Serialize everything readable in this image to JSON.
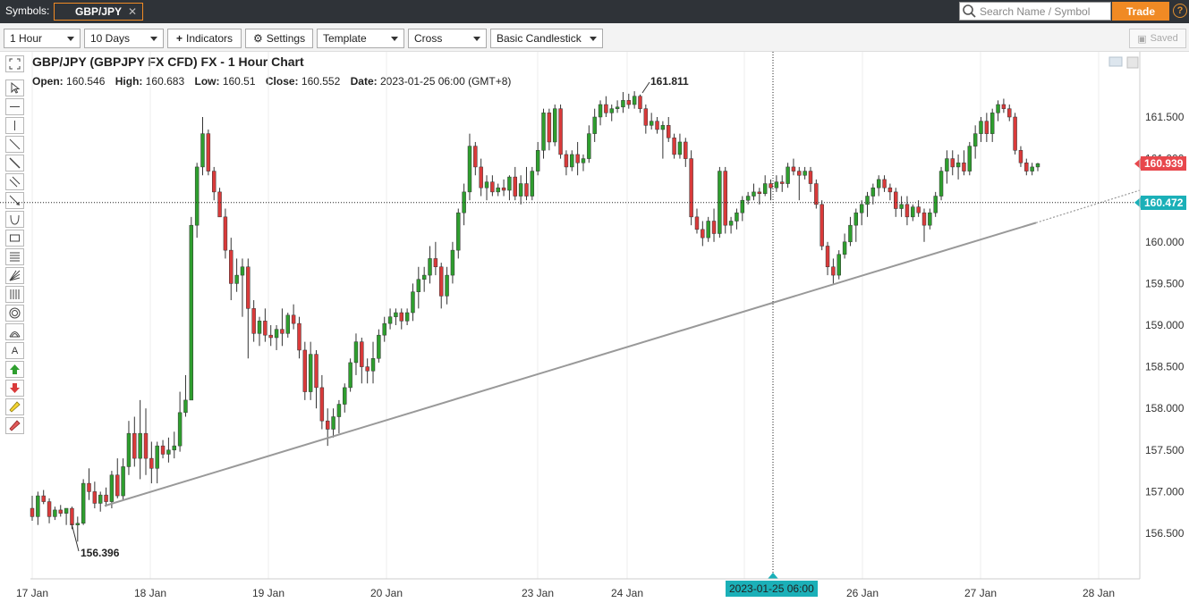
{
  "topbar": {
    "symbols_label": "Symbols:",
    "symbol": "GBP/JPY",
    "close_glyph": "✕",
    "search_placeholder": "Search Name / Symbol",
    "trade_label": "Trade",
    "help_glyph": "?"
  },
  "toolbar": {
    "interval": "1 Hour",
    "range": "10 Days",
    "indicators": "Indicators",
    "settings": "Settings",
    "template": "Template",
    "cursor": "Cross",
    "style": "Basic Candlestick",
    "saved": "Saved"
  },
  "tools": [
    "expand-icon",
    "pointer-icon",
    "horizontal-line-icon",
    "vertical-line-icon",
    "trend-line-icon",
    "ray-icon",
    "parallel-channel-icon",
    "arrow-line-icon",
    "arc-icon",
    "rectangle-icon",
    "fib-retracement-icon",
    "fib-fan-icon",
    "fib-timezone-icon",
    "circles-icon",
    "fib-arc-icon",
    "text-icon",
    "up-arrow-icon",
    "down-arrow-icon",
    "highlighter-icon",
    "eraser-icon"
  ],
  "header": {
    "title": "GBP/JPY (GBPJPY FX CFD) FX - 1 Hour Chart",
    "open_label": "Open:",
    "open": "160.546",
    "high_label": "High:",
    "high": "160.683",
    "low_label": "Low:",
    "low": "160.51",
    "close_label": "Close:",
    "close": "160.552",
    "date_label": "Date:",
    "date": "2023-01-25 06:00 (GMT+8)"
  },
  "colors": {
    "up": "#2e9e2e",
    "down": "#d93a3a",
    "last_price_badge": "#e8474c",
    "crosshair_badge": "#1bb0b8",
    "trend_line": "#999999"
  },
  "chart_data": {
    "type": "candlestick",
    "title": "GBP/JPY (GBPJPY FX CFD) FX - 1 Hour Chart",
    "ylim": [
      156.1,
      162.0
    ],
    "y_ticks": [
      "161.500",
      "161.000",
      "160.500",
      "160.000",
      "159.500",
      "159.000",
      "158.500",
      "158.000",
      "157.500",
      "157.000",
      "156.500"
    ],
    "x_ticks": [
      "17 Jan",
      "18 Jan",
      "19 Jan",
      "20 Jan",
      "23 Jan",
      "24 Jan",
      "26 Jan",
      "27 Jan",
      "28 Jan"
    ],
    "last_price": "160.939",
    "crosshair_price": "160.472",
    "crosshair_time": "2023-01-25 06:00",
    "high_marker": "161.811",
    "low_marker": "156.396",
    "trend_line": {
      "start": 156.83,
      "end": 160.23,
      "extension_end": 160.62
    },
    "candles": [
      [
        156.8,
        156.95,
        156.65,
        156.7
      ],
      [
        156.7,
        157.0,
        156.6,
        156.95
      ],
      [
        156.95,
        157.02,
        156.85,
        156.88
      ],
      [
        156.88,
        156.92,
        156.62,
        156.7
      ],
      [
        156.7,
        156.82,
        156.66,
        156.78
      ],
      [
        156.78,
        156.84,
        156.7,
        156.74
      ],
      [
        156.74,
        156.8,
        156.6,
        156.8
      ],
      [
        156.8,
        156.82,
        156.55,
        156.6
      ],
      [
        156.6,
        156.7,
        156.4,
        156.62
      ],
      [
        156.62,
        157.15,
        156.6,
        157.1
      ],
      [
        157.1,
        157.28,
        156.9,
        157.0
      ],
      [
        157.0,
        157.12,
        156.8,
        156.86
      ],
      [
        156.86,
        157.0,
        156.76,
        156.96
      ],
      [
        156.96,
        157.05,
        156.82,
        156.88
      ],
      [
        156.88,
        157.25,
        156.8,
        157.2
      ],
      [
        157.2,
        157.4,
        156.92,
        156.95
      ],
      [
        156.95,
        157.4,
        156.9,
        157.3
      ],
      [
        157.3,
        157.85,
        157.2,
        157.7
      ],
      [
        157.7,
        157.9,
        157.3,
        157.4
      ],
      [
        157.4,
        158.1,
        157.15,
        157.7
      ],
      [
        157.7,
        158.0,
        157.2,
        157.4
      ],
      [
        157.4,
        157.6,
        157.1,
        157.28
      ],
      [
        157.28,
        157.6,
        157.1,
        157.55
      ],
      [
        157.55,
        157.62,
        157.4,
        157.45
      ],
      [
        157.45,
        157.65,
        157.35,
        157.5
      ],
      [
        157.5,
        157.72,
        157.4,
        157.55
      ],
      [
        157.55,
        158.2,
        157.48,
        157.95
      ],
      [
        157.95,
        158.4,
        157.9,
        158.1
      ],
      [
        158.1,
        160.3,
        158.1,
        160.2
      ],
      [
        160.2,
        160.95,
        160.05,
        160.9
      ],
      [
        160.9,
        161.5,
        160.8,
        161.3
      ],
      [
        161.3,
        161.35,
        160.8,
        160.85
      ],
      [
        160.85,
        160.9,
        160.5,
        160.6
      ],
      [
        160.6,
        160.65,
        160.3,
        160.3
      ],
      [
        160.3,
        160.4,
        159.8,
        159.9
      ],
      [
        159.9,
        160.05,
        159.3,
        159.5
      ],
      [
        159.5,
        159.8,
        159.4,
        159.6
      ],
      [
        159.6,
        159.8,
        159.1,
        159.7
      ],
      [
        159.7,
        159.8,
        158.6,
        159.2
      ],
      [
        159.2,
        159.3,
        158.8,
        158.9
      ],
      [
        158.9,
        159.1,
        158.75,
        159.05
      ],
      [
        159.05,
        159.2,
        158.8,
        158.88
      ],
      [
        158.88,
        159.0,
        158.75,
        158.85
      ],
      [
        158.85,
        159.0,
        158.7,
        158.95
      ],
      [
        158.95,
        159.2,
        158.75,
        158.9
      ],
      [
        158.9,
        159.15,
        158.85,
        159.12
      ],
      [
        159.12,
        159.25,
        158.95,
        159.02
      ],
      [
        159.02,
        159.1,
        158.6,
        158.7
      ],
      [
        158.7,
        158.8,
        158.1,
        158.2
      ],
      [
        158.2,
        158.8,
        158.1,
        158.65
      ],
      [
        158.65,
        158.7,
        158.0,
        158.25
      ],
      [
        158.25,
        158.4,
        157.75,
        157.85
      ],
      [
        157.85,
        158.0,
        157.55,
        157.75
      ],
      [
        157.75,
        158.0,
        157.65,
        157.9
      ],
      [
        157.9,
        158.1,
        157.7,
        158.05
      ],
      [
        158.05,
        158.3,
        157.95,
        158.25
      ],
      [
        158.25,
        158.6,
        158.2,
        158.55
      ],
      [
        158.55,
        158.9,
        158.4,
        158.8
      ],
      [
        158.8,
        158.85,
        158.3,
        158.5
      ],
      [
        158.5,
        158.6,
        158.3,
        158.45
      ],
      [
        158.45,
        158.8,
        158.3,
        158.6
      ],
      [
        158.6,
        158.95,
        158.55,
        158.88
      ],
      [
        158.88,
        159.1,
        158.8,
        159.02
      ],
      [
        159.02,
        159.2,
        158.95,
        159.1
      ],
      [
        159.1,
        159.2,
        159.0,
        159.15
      ],
      [
        159.15,
        159.2,
        158.95,
        159.05
      ],
      [
        159.05,
        159.2,
        159.0,
        159.15
      ],
      [
        159.15,
        159.5,
        159.05,
        159.4
      ],
      [
        159.4,
        159.7,
        159.2,
        159.55
      ],
      [
        159.55,
        159.7,
        159.4,
        159.6
      ],
      [
        159.6,
        159.95,
        159.5,
        159.8
      ],
      [
        159.8,
        160.0,
        159.6,
        159.7
      ],
      [
        159.7,
        159.75,
        159.2,
        159.35
      ],
      [
        159.35,
        159.7,
        159.25,
        159.6
      ],
      [
        159.6,
        160.0,
        159.5,
        159.9
      ],
      [
        159.9,
        160.4,
        159.8,
        160.35
      ],
      [
        160.35,
        160.7,
        160.2,
        160.6
      ],
      [
        160.6,
        161.3,
        160.5,
        161.15
      ],
      [
        161.15,
        161.2,
        160.8,
        160.9
      ],
      [
        160.9,
        161.0,
        160.55,
        160.65
      ],
      [
        160.65,
        160.8,
        160.5,
        160.72
      ],
      [
        160.72,
        160.8,
        160.55,
        160.6
      ],
      [
        160.6,
        160.7,
        160.55,
        160.65
      ],
      [
        160.65,
        160.75,
        160.55,
        160.62
      ],
      [
        160.62,
        160.8,
        160.5,
        160.78
      ],
      [
        160.78,
        160.9,
        160.5,
        160.55
      ],
      [
        160.55,
        160.8,
        160.45,
        160.7
      ],
      [
        160.7,
        160.9,
        160.5,
        160.55
      ],
      [
        160.55,
        160.9,
        160.5,
        160.85
      ],
      [
        160.85,
        161.2,
        160.8,
        161.1
      ],
      [
        161.1,
        161.6,
        161.0,
        161.55
      ],
      [
        161.55,
        161.6,
        161.1,
        161.2
      ],
      [
        161.2,
        161.65,
        161.15,
        161.6
      ],
      [
        161.6,
        161.65,
        161.0,
        161.05
      ],
      [
        161.05,
        161.1,
        160.8,
        160.9
      ],
      [
        160.9,
        161.1,
        160.85,
        161.05
      ],
      [
        161.05,
        161.2,
        160.8,
        160.95
      ],
      [
        160.95,
        161.05,
        160.85,
        161.0
      ],
      [
        161.0,
        161.4,
        160.95,
        161.3
      ],
      [
        161.3,
        161.6,
        161.2,
        161.5
      ],
      [
        161.5,
        161.7,
        161.4,
        161.65
      ],
      [
        161.65,
        161.75,
        161.5,
        161.55
      ],
      [
        161.55,
        161.65,
        161.45,
        161.6
      ],
      [
        161.6,
        161.7,
        161.55,
        161.62
      ],
      [
        161.62,
        161.8,
        161.55,
        161.7
      ],
      [
        161.7,
        161.78,
        161.6,
        161.65
      ],
      [
        161.65,
        161.81,
        161.6,
        161.75
      ],
      [
        161.75,
        161.77,
        161.55,
        161.6
      ],
      [
        161.6,
        161.65,
        161.3,
        161.4
      ],
      [
        161.4,
        161.55,
        161.35,
        161.45
      ],
      [
        161.45,
        161.5,
        161.3,
        161.35
      ],
      [
        161.35,
        161.45,
        161.0,
        161.4
      ],
      [
        161.4,
        161.5,
        161.2,
        161.25
      ],
      [
        161.25,
        161.3,
        161.0,
        161.05
      ],
      [
        161.05,
        161.3,
        161.0,
        161.2
      ],
      [
        161.2,
        161.25,
        160.9,
        161.0
      ],
      [
        161.0,
        161.1,
        160.2,
        160.3
      ],
      [
        160.3,
        160.4,
        160.1,
        160.15
      ],
      [
        160.15,
        160.25,
        159.95,
        160.05
      ],
      [
        160.05,
        160.3,
        160.0,
        160.25
      ],
      [
        160.25,
        160.4,
        160.0,
        160.1
      ],
      [
        160.1,
        160.9,
        160.05,
        160.85
      ],
      [
        160.85,
        160.9,
        160.1,
        160.2
      ],
      [
        160.2,
        160.3,
        160.1,
        160.25
      ],
      [
        160.25,
        160.4,
        160.15,
        160.35
      ],
      [
        160.35,
        160.55,
        160.25,
        160.5
      ],
      [
        160.5,
        160.6,
        160.45,
        160.55
      ],
      [
        160.55,
        160.7,
        160.5,
        160.6
      ],
      [
        160.6,
        160.65,
        160.45,
        160.58
      ],
      [
        160.58,
        160.8,
        160.55,
        160.7
      ],
      [
        160.7,
        160.75,
        160.5,
        160.65
      ],
      [
        160.65,
        160.8,
        160.6,
        160.72
      ],
      [
        160.72,
        160.8,
        160.6,
        160.7
      ],
      [
        160.7,
        160.95,
        160.65,
        160.9
      ],
      [
        160.9,
        161.0,
        160.8,
        160.85
      ],
      [
        160.85,
        160.9,
        160.5,
        160.8
      ],
      [
        160.8,
        160.9,
        160.75,
        160.85
      ],
      [
        160.85,
        160.9,
        160.6,
        160.7
      ],
      [
        160.7,
        160.75,
        160.4,
        160.45
      ],
      [
        160.45,
        160.5,
        159.9,
        159.95
      ],
      [
        159.95,
        160.0,
        159.6,
        159.7
      ],
      [
        159.7,
        159.8,
        159.5,
        159.6
      ],
      [
        159.6,
        159.9,
        159.55,
        159.85
      ],
      [
        159.85,
        160.1,
        159.8,
        160.0
      ],
      [
        160.0,
        160.3,
        159.95,
        160.2
      ],
      [
        160.2,
        160.4,
        160.0,
        160.35
      ],
      [
        160.35,
        160.5,
        160.2,
        160.45
      ],
      [
        160.45,
        160.6,
        160.3,
        160.55
      ],
      [
        160.55,
        160.7,
        160.45,
        160.65
      ],
      [
        160.65,
        160.8,
        160.55,
        160.75
      ],
      [
        160.75,
        160.8,
        160.6,
        160.65
      ],
      [
        160.65,
        160.7,
        160.5,
        160.6
      ],
      [
        160.6,
        160.65,
        160.3,
        160.4
      ],
      [
        160.4,
        160.55,
        160.3,
        160.45
      ],
      [
        160.45,
        160.55,
        160.2,
        160.3
      ],
      [
        160.3,
        160.45,
        160.25,
        160.42
      ],
      [
        160.42,
        160.5,
        160.3,
        160.35
      ],
      [
        160.35,
        160.4,
        160.0,
        160.2
      ],
      [
        160.2,
        160.4,
        160.15,
        160.35
      ],
      [
        160.35,
        160.6,
        160.3,
        160.55
      ],
      [
        160.55,
        160.9,
        160.5,
        160.85
      ],
      [
        160.85,
        161.1,
        160.7,
        161.0
      ],
      [
        161.0,
        161.1,
        160.8,
        160.9
      ],
      [
        160.9,
        161.05,
        160.75,
        160.95
      ],
      [
        160.95,
        161.1,
        160.8,
        160.85
      ],
      [
        160.85,
        161.2,
        160.8,
        161.15
      ],
      [
        161.15,
        161.4,
        161.0,
        161.3
      ],
      [
        161.3,
        161.5,
        161.2,
        161.45
      ],
      [
        161.45,
        161.55,
        161.2,
        161.3
      ],
      [
        161.3,
        161.6,
        161.2,
        161.55
      ],
      [
        161.55,
        161.7,
        161.45,
        161.65
      ],
      [
        161.65,
        161.72,
        161.55,
        161.6
      ],
      [
        161.6,
        161.65,
        161.45,
        161.5
      ],
      [
        161.5,
        161.55,
        161.05,
        161.1
      ],
      [
        161.1,
        161.15,
        160.9,
        160.95
      ],
      [
        160.95,
        161.0,
        160.8,
        160.85
      ],
      [
        160.85,
        160.95,
        160.8,
        160.9
      ],
      [
        160.9,
        160.95,
        160.85,
        160.94
      ]
    ]
  }
}
